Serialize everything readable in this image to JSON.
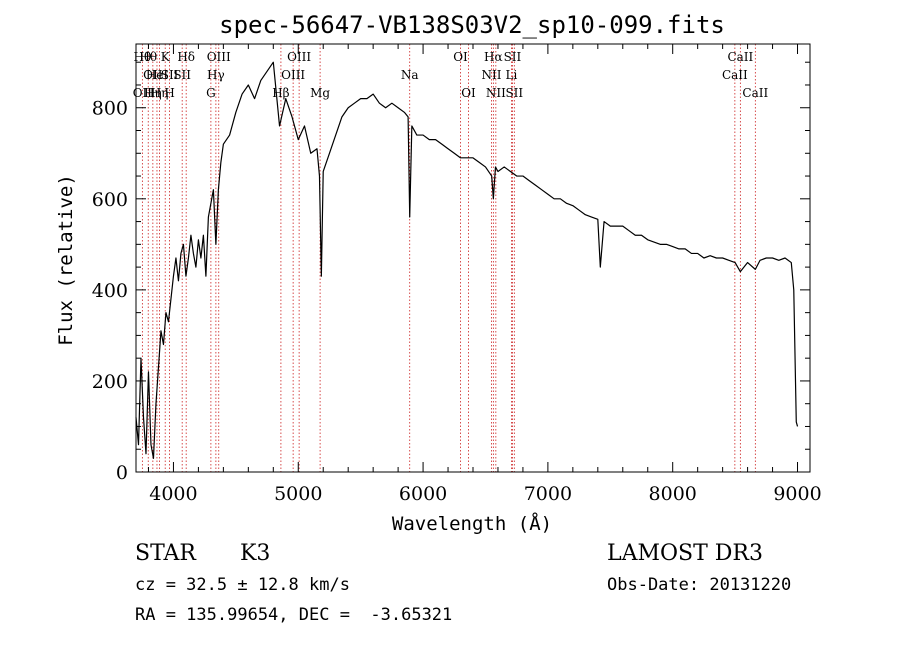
{
  "chart_data": {
    "type": "line",
    "title": "spec-56647-VB138S03V2_sp10-099.fits",
    "xlabel": "Wavelength (Å)",
    "ylabel": "Flux (relative)",
    "xlim": [
      3700,
      9100
    ],
    "ylim": [
      0,
      940
    ],
    "x_ticks": [
      4000,
      5000,
      6000,
      7000,
      8000,
      9000
    ],
    "y_ticks": [
      0,
      200,
      400,
      600,
      800
    ],
    "grid": false,
    "line_color": "#000000",
    "marker_color": "#cc2222",
    "series": [
      {
        "x": [
          3700,
          3720,
          3740,
          3760,
          3780,
          3800,
          3820,
          3840,
          3860,
          3880,
          3900,
          3920,
          3940,
          3960,
          3980,
          4000,
          4020,
          4040,
          4060,
          4080,
          4100,
          4120,
          4140,
          4160,
          4180,
          4200,
          4220,
          4240,
          4260,
          4280,
          4300,
          4320,
          4340,
          4360,
          4380,
          4400,
          4450,
          4500,
          4550,
          4600,
          4650,
          4700,
          4750,
          4800,
          4850,
          4900,
          4950,
          5000,
          5050,
          5100,
          5150,
          5170,
          5185,
          5200,
          5250,
          5300,
          5350,
          5400,
          5450,
          5500,
          5550,
          5600,
          5650,
          5700,
          5750,
          5800,
          5850,
          5880,
          5893,
          5910,
          5950,
          6000,
          6050,
          6100,
          6150,
          6200,
          6250,
          6300,
          6350,
          6400,
          6450,
          6500,
          6550,
          6563,
          6580,
          6600,
          6650,
          6700,
          6750,
          6800,
          6850,
          6900,
          6950,
          7000,
          7050,
          7100,
          7150,
          7200,
          7250,
          7300,
          7350,
          7400,
          7420,
          7450,
          7500,
          7550,
          7600,
          7650,
          7700,
          7750,
          7800,
          7850,
          7900,
          7950,
          8000,
          8050,
          8100,
          8150,
          8200,
          8250,
          8300,
          8350,
          8400,
          8450,
          8500,
          8542,
          8600,
          8662,
          8700,
          8750,
          8800,
          8850,
          8900,
          8950,
          8970,
          8990,
          9000
        ],
        "y": [
          120,
          60,
          250,
          120,
          40,
          220,
          60,
          30,
          150,
          230,
          310,
          280,
          350,
          330,
          380,
          430,
          470,
          420,
          480,
          500,
          430,
          470,
          520,
          480,
          450,
          510,
          470,
          520,
          430,
          560,
          590,
          620,
          500,
          620,
          680,
          720,
          740,
          790,
          830,
          850,
          820,
          860,
          880,
          900,
          760,
          820,
          780,
          730,
          760,
          700,
          710,
          650,
          430,
          660,
          700,
          740,
          780,
          800,
          810,
          820,
          820,
          830,
          810,
          800,
          810,
          800,
          790,
          780,
          560,
          760,
          740,
          740,
          730,
          730,
          720,
          710,
          700,
          690,
          690,
          690,
          680,
          670,
          650,
          600,
          670,
          660,
          670,
          660,
          650,
          650,
          640,
          630,
          620,
          610,
          600,
          600,
          590,
          585,
          575,
          565,
          560,
          555,
          450,
          550,
          540,
          540,
          540,
          530,
          520,
          520,
          510,
          505,
          500,
          500,
          495,
          490,
          490,
          480,
          480,
          470,
          475,
          470,
          470,
          465,
          460,
          440,
          460,
          445,
          465,
          470,
          470,
          465,
          470,
          460,
          400,
          110,
          100
        ]
      }
    ],
    "lines": [
      {
        "x": 3751,
        "rows": [
          0,
          2
        ],
        "labels": [
          "Hθ",
          "OII"
        ]
      },
      {
        "x": 3798,
        "rows": [
          0
        ],
        "labels": [
          "Hθ"
        ]
      },
      {
        "x": 3835,
        "rows": [
          1,
          2
        ],
        "labels": [
          "OII",
          "Hη"
        ]
      },
      {
        "x": 3868,
        "rows": [
          1
        ],
        "labels": [
          "HeI"
        ]
      },
      {
        "x": 3889,
        "rows": [
          2
        ],
        "labels": [
          "Hη"
        ]
      },
      {
        "x": 3934,
        "rows": [
          0
        ],
        "labels": [
          "K"
        ]
      },
      {
        "x": 3969,
        "rows": [
          1,
          2
        ],
        "labels": [
          "SII",
          "H"
        ]
      },
      {
        "x": 4070,
        "rows": [
          1
        ],
        "labels": [
          "SII"
        ]
      },
      {
        "x": 4102,
        "rows": [
          0
        ],
        "labels": [
          "Hδ"
        ]
      },
      {
        "x": 4300,
        "rows": [
          2
        ],
        "labels": [
          "G"
        ]
      },
      {
        "x": 4340,
        "rows": [
          1
        ],
        "labels": [
          "Hγ"
        ]
      },
      {
        "x": 4363,
        "rows": [
          0
        ],
        "labels": [
          "OIII"
        ]
      },
      {
        "x": 4861,
        "rows": [
          2
        ],
        "labels": [
          "Hβ"
        ]
      },
      {
        "x": 4959,
        "rows": [
          1
        ],
        "labels": [
          "OIII"
        ]
      },
      {
        "x": 5007,
        "rows": [
          0
        ],
        "labels": [
          "OIII"
        ]
      },
      {
        "x": 5175,
        "rows": [
          2
        ],
        "labels": [
          "Mg"
        ]
      },
      {
        "x": 5893,
        "rows": [
          1
        ],
        "labels": [
          "Na"
        ]
      },
      {
        "x": 6300,
        "rows": [
          0
        ],
        "labels": [
          "OI"
        ]
      },
      {
        "x": 6364,
        "rows": [
          2
        ],
        "labels": [
          "OI"
        ]
      },
      {
        "x": 6548,
        "rows": [
          1
        ],
        "labels": [
          "NII"
        ]
      },
      {
        "x": 6563,
        "rows": [
          0
        ],
        "labels": [
          "Hα"
        ]
      },
      {
        "x": 6583,
        "rows": [
          2
        ],
        "labels": [
          "NII"
        ]
      },
      {
        "x": 6708,
        "rows": [
          1
        ],
        "labels": [
          "Li"
        ]
      },
      {
        "x": 6716,
        "rows": [
          0
        ],
        "labels": [
          "SII"
        ]
      },
      {
        "x": 6731,
        "rows": [
          2
        ],
        "labels": [
          "SII"
        ]
      },
      {
        "x": 8498,
        "rows": [
          1
        ],
        "labels": [
          "CaII"
        ]
      },
      {
        "x": 8542,
        "rows": [
          0
        ],
        "labels": [
          "CaII"
        ]
      },
      {
        "x": 8662,
        "rows": [
          2
        ],
        "labels": [
          "CaII"
        ]
      }
    ]
  },
  "info": {
    "object_class": "STAR",
    "subclass": "K3",
    "survey": "LAMOST DR3",
    "cz": "cz = 32.5 ± 12.8 km/s",
    "obs_date": "Obs-Date: 20131220",
    "coords": "RA = 135.99654, DEC =  -3.65321"
  }
}
